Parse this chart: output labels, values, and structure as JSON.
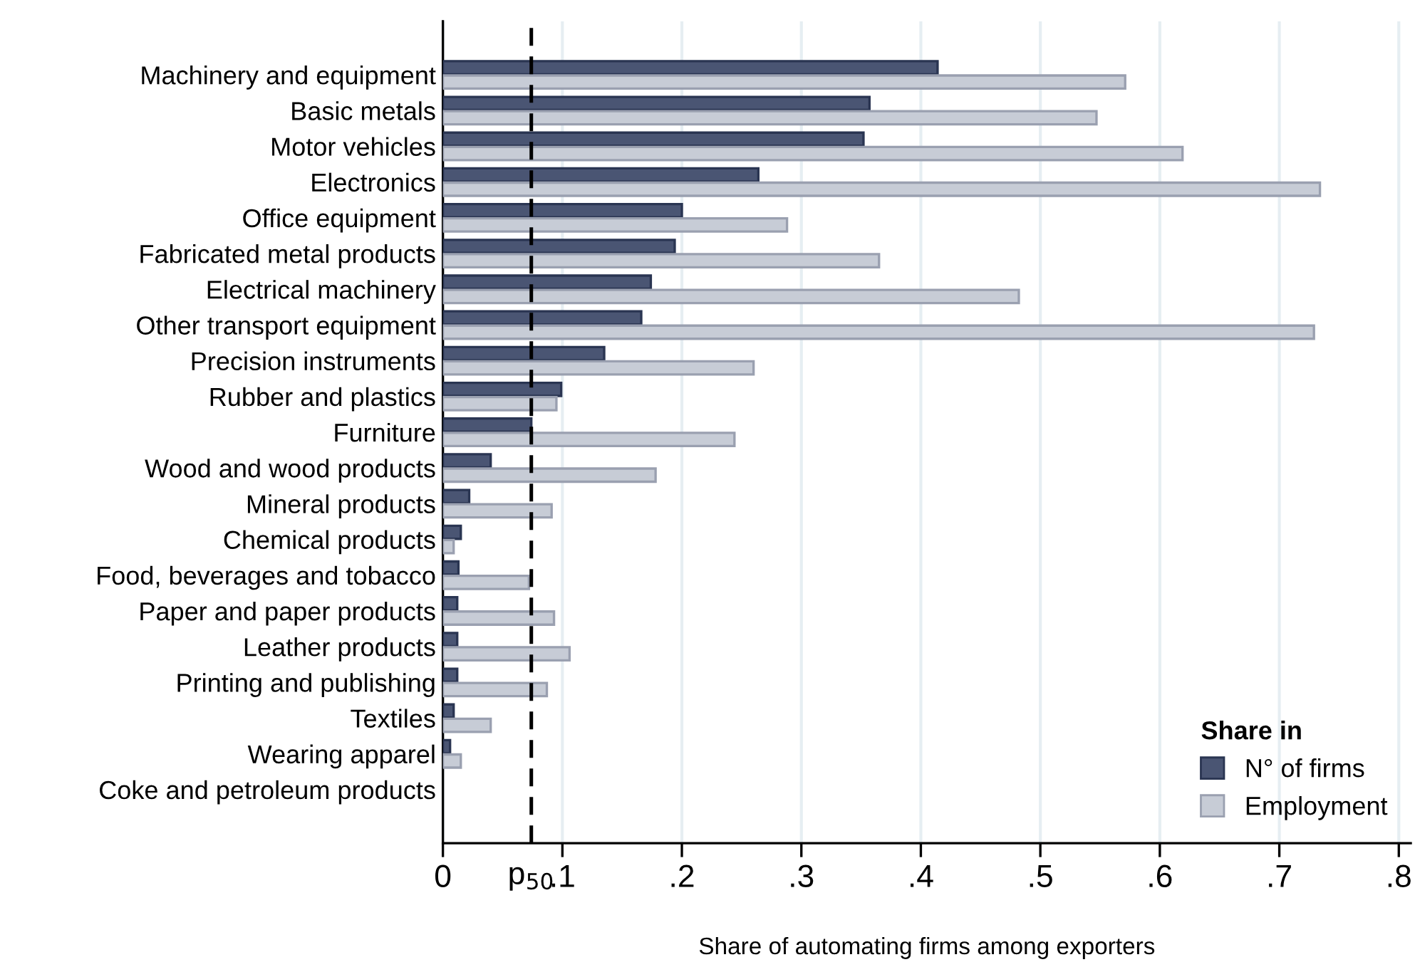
{
  "chart_data": {
    "type": "bar",
    "orientation": "horizontal",
    "xlabel": "Share of automating firms among exporters",
    "legend_title": "Share in",
    "legend": "bottom right",
    "grid": "x",
    "categories": [
      "Machinery and equipment",
      "Basic metals",
      "Motor vehicles",
      "Electronics",
      "Office equipment",
      "Fabricated metal products",
      "Electrical machinery",
      "Other transport equipment",
      "Precision instruments",
      "Rubber and plastics",
      "Furniture",
      "Wood and wood products",
      "Mineral products",
      "Chemical products",
      "Food, beverages and tobacco",
      "Paper and paper products",
      "Leather products",
      "Printing and publishing",
      "Textiles",
      "Wearing apparel",
      "Coke and petroleum products"
    ],
    "series": [
      {
        "name": "N° of firms",
        "color": "#4a5573",
        "values": [
          0.414,
          0.357,
          0.352,
          0.264,
          0.2,
          0.194,
          0.174,
          0.166,
          0.135,
          0.099,
          0.074,
          0.04,
          0.022,
          0.015,
          0.013,
          0.012,
          0.012,
          0.012,
          0.009,
          0.006,
          0
        ]
      },
      {
        "name": "Employment",
        "color": "#c7ccd6",
        "values": [
          0.571,
          0.547,
          0.619,
          0.734,
          0.288,
          0.365,
          0.482,
          0.729,
          0.26,
          0.095,
          0.244,
          0.178,
          0.091,
          0.009,
          0.072,
          0.093,
          0.106,
          0.087,
          0.04,
          0.015,
          0
        ]
      }
    ],
    "xlim": [
      0,
      0.81
    ],
    "xticks": [
      0,
      {
        "value": 0.1,
        "label": ".1"
      },
      {
        "value": 0.2,
        "label": ".2"
      },
      {
        "value": 0.3,
        "label": ".3"
      },
      {
        "value": 0.4,
        "label": ".4"
      },
      {
        "value": 0.5,
        "label": ".5"
      },
      {
        "value": 0.6,
        "label": ".6"
      },
      {
        "value": 0.7,
        "label": ".7"
      },
      {
        "value": 0.8,
        "label": ".8"
      }
    ],
    "ref_lines": [
      {
        "axis": "x",
        "value": 0.074,
        "label": "p$_{50}$",
        "color": "#000000",
        "line_style": "dashed"
      }
    ]
  }
}
